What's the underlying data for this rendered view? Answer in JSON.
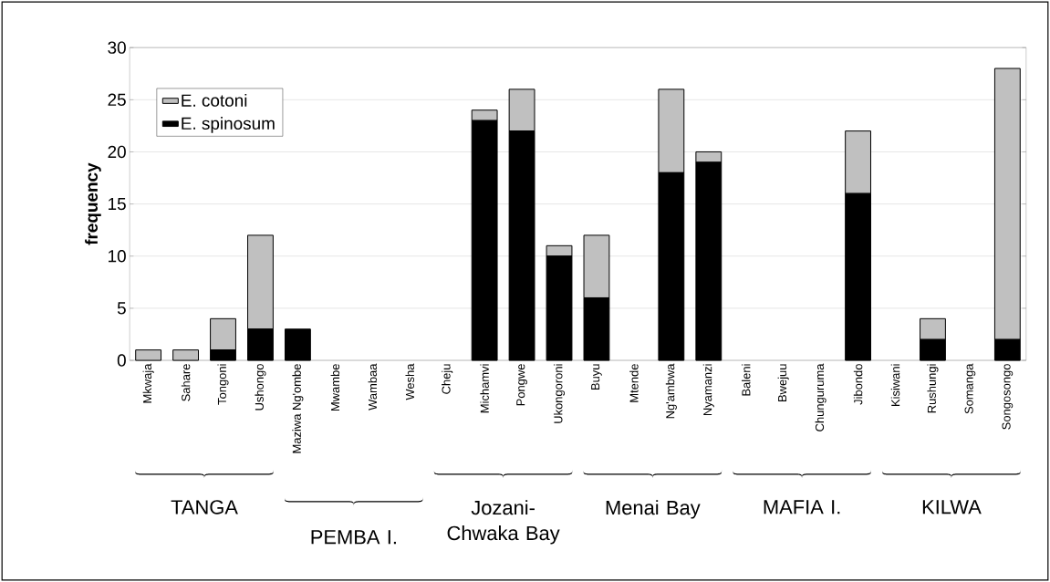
{
  "chart_data": {
    "type": "bar",
    "stacked": true,
    "ylabel": "frequency",
    "categories": [
      "Mkwaja",
      "Sahare",
      "Tongoni",
      "Ushongo",
      "Maziwa Ng'ombe",
      "Mwambe",
      "Wambaa",
      "Wesha",
      "Cheju",
      "Michamvi",
      "Pongwe",
      "Ukongoroni",
      "Buyu",
      "Mtende",
      "Ng'ambwa",
      "Nyamanzi",
      "Baleni",
      "Bwejuu",
      "Chunguruma",
      "Jibondo",
      "Kisiwani",
      "Rushungi",
      "Somanga",
      "Songosongo"
    ],
    "series": [
      {
        "name": "E. spinosum",
        "color": "#000000",
        "values": [
          0,
          0,
          1,
          3,
          3,
          0,
          0,
          0,
          0,
          23,
          22,
          10,
          6,
          0,
          18,
          19,
          0,
          0,
          0,
          16,
          0,
          2,
          0,
          2
        ]
      },
      {
        "name": "E. cotoni",
        "color": "#c0c0c0",
        "values": [
          1,
          1,
          3,
          9,
          0,
          0,
          0,
          0,
          0,
          1,
          4,
          1,
          6,
          0,
          8,
          1,
          0,
          0,
          0,
          6,
          0,
          2,
          0,
          26
        ]
      }
    ],
    "ylim": [
      0,
      30
    ],
    "yticks": [
      0,
      5,
      10,
      15,
      20,
      25,
      30
    ],
    "grid": "y",
    "legend": "top left",
    "annotations": [
      "TANGA",
      "PEMBA I.",
      "Jozani-Chwaka Bay",
      "Menai Bay",
      "MAFIA I.",
      "KILWA"
    ]
  }
}
